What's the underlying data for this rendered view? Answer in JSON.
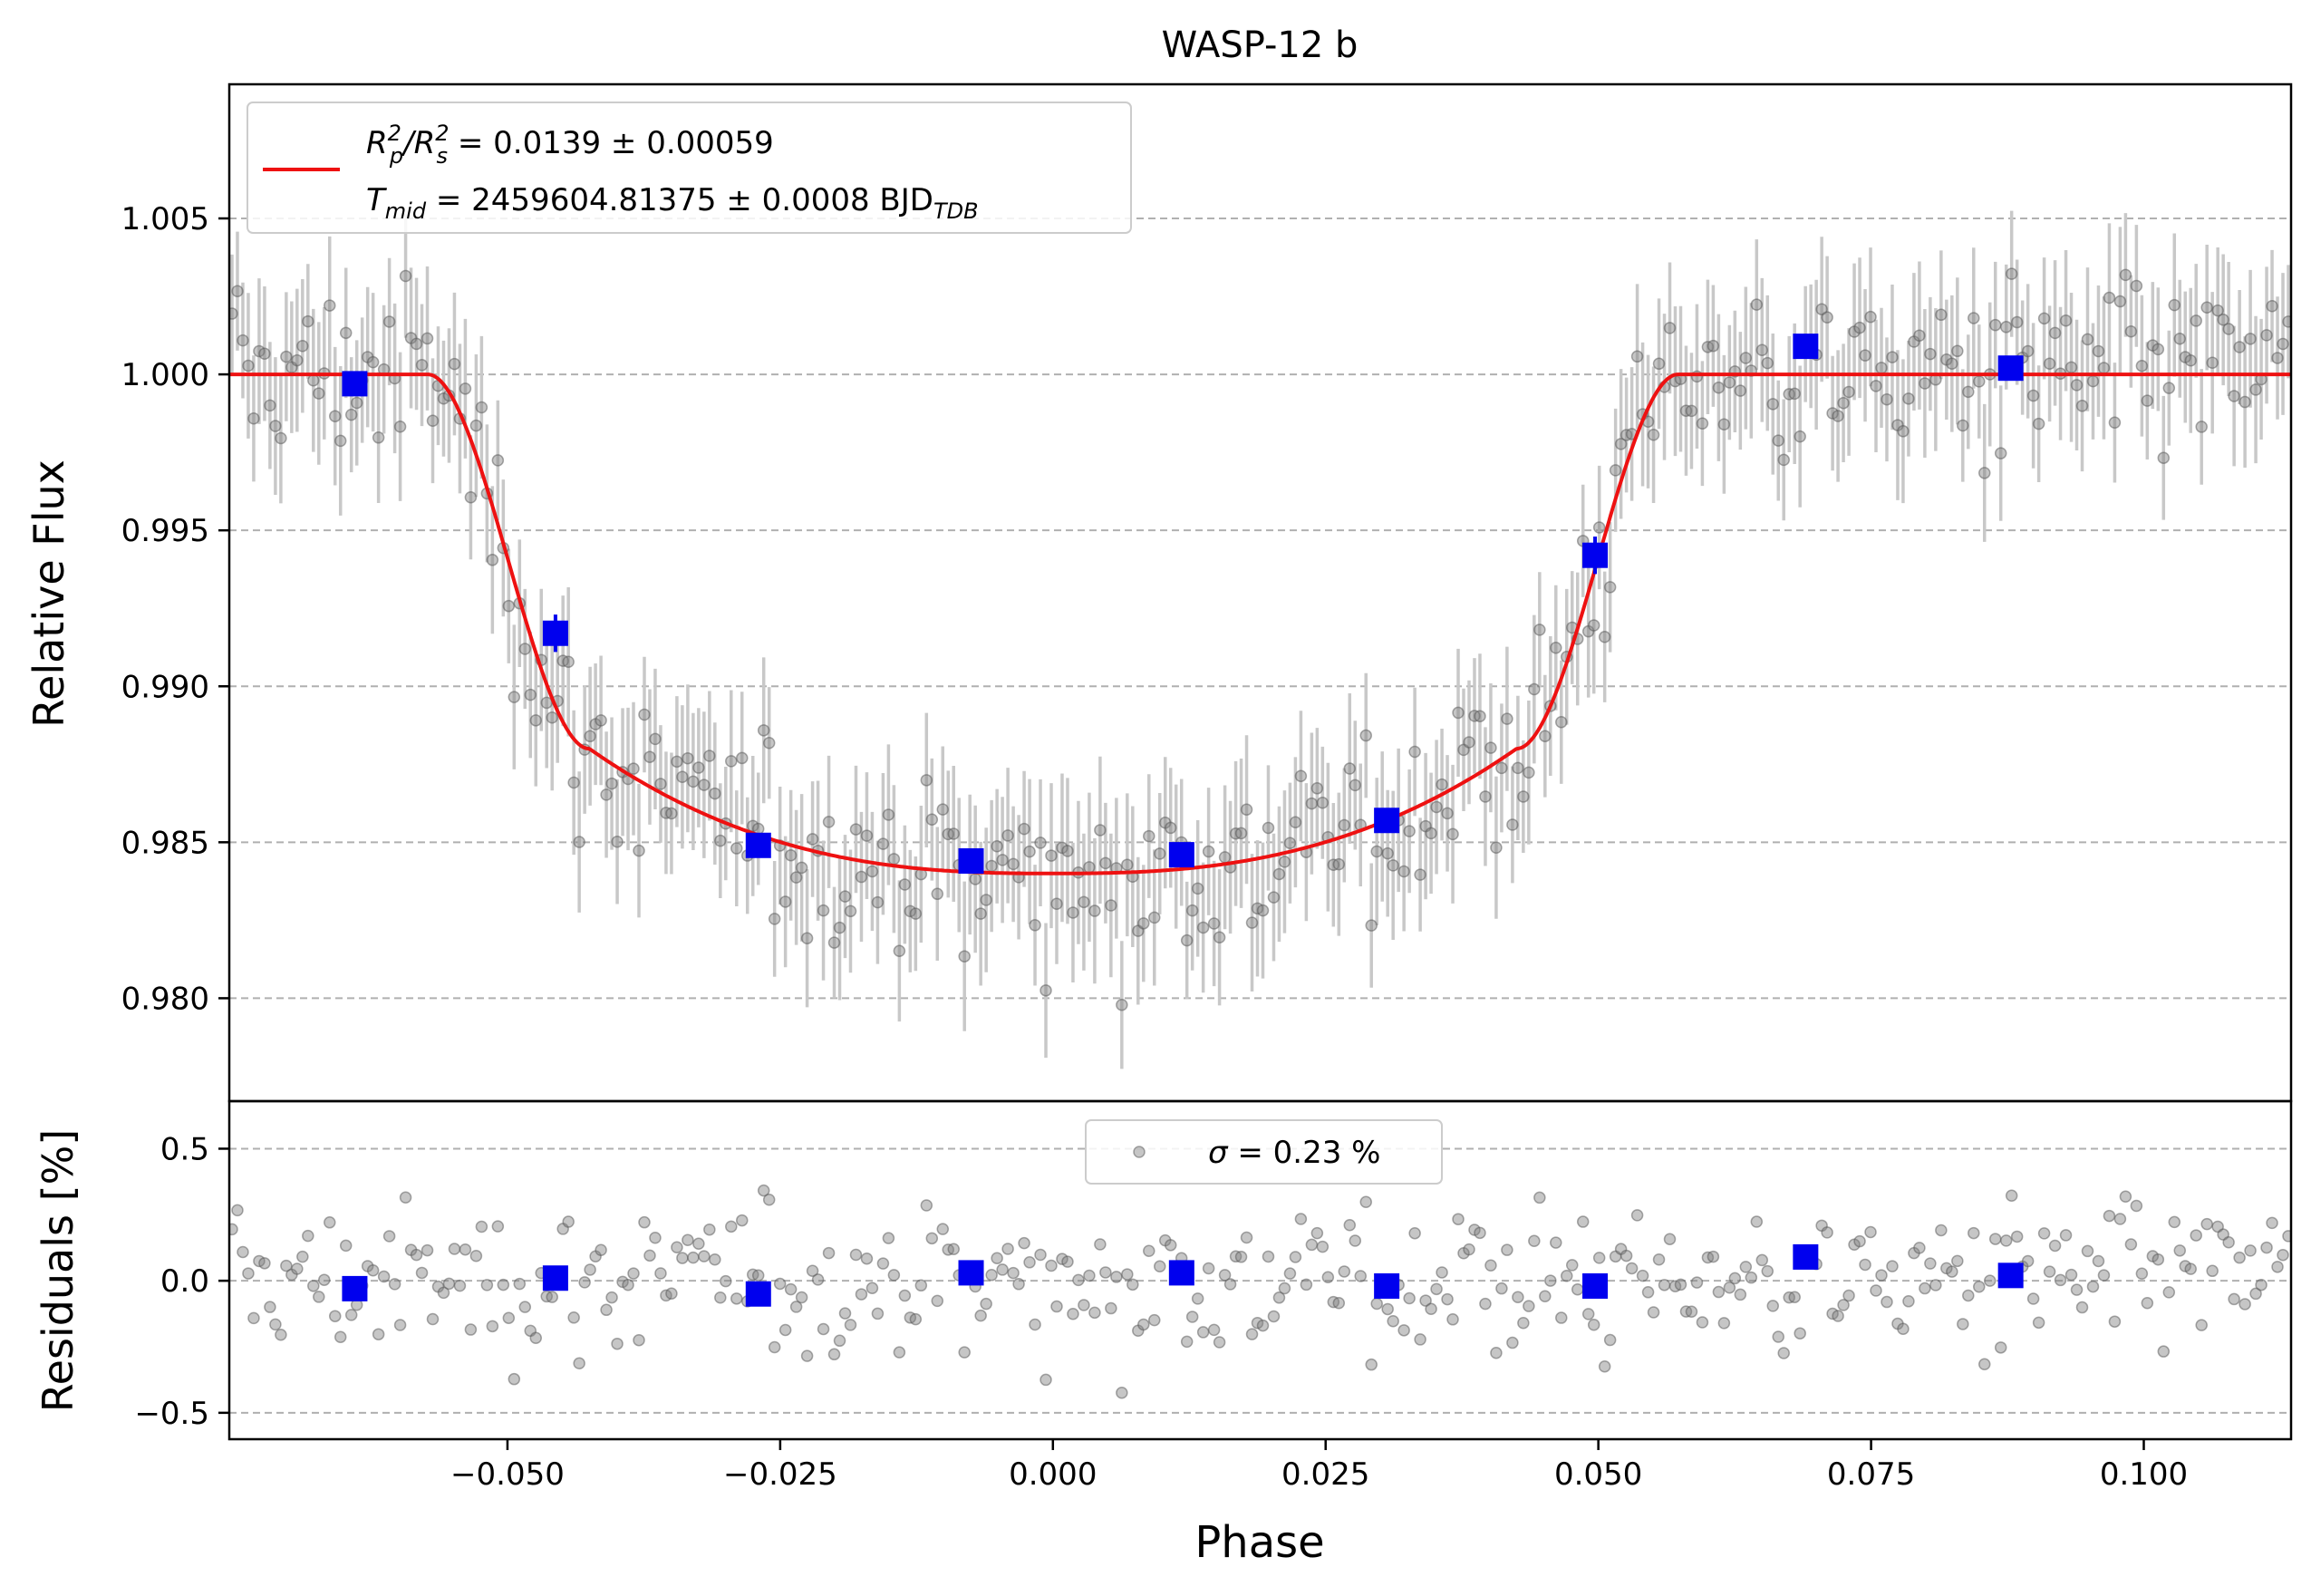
{
  "chart_data": [
    {
      "type": "scatter",
      "title": "WASP-12 b",
      "ylabel": "Relative Flux",
      "xlabel": "",
      "xlim": [
        -0.0755,
        0.1135
      ],
      "ylim": [
        0.9767,
        1.0093
      ],
      "grid": "horizontal dashed",
      "legend_position": "top-left",
      "y_ticks": [
        "1.005",
        "1.000",
        "0.995",
        "0.990",
        "0.985",
        "0.980"
      ],
      "y_tick_values": [
        1.005,
        1.0,
        0.995,
        0.99,
        0.985,
        0.98
      ],
      "legend": {
        "line1": {
          "lhs": "R",
          "lhs_sub": "p",
          "lhs_sup": "2",
          "slash": "/R",
          "rhs_sub": "s",
          "rhs_sup": "2",
          "rest": " = 0.0139 ± 0.00059"
        },
        "line2": {
          "lhs": "T",
          "lhs_sub": "mid",
          "rest": " = 2459604.81375 ± 0.0008 BJD",
          "rest_sub": "TDB"
        }
      },
      "model": {
        "color": "#ee1111",
        "baseline": 1.0,
        "depth": 0.016,
        "t1": 0.0573,
        "t2": 0.0425,
        "ingress_flux": 0.988
      },
      "binned": {
        "color": "#0000ee",
        "x": [
          -0.064,
          -0.0456,
          -0.027,
          -0.0075,
          0.0118,
          0.0306,
          0.0497,
          0.069,
          0.0878
        ],
        "y": [
          0.9997,
          0.9917,
          0.9849,
          0.9844,
          0.9846,
          0.9857,
          0.9942,
          1.0009,
          1.0002
        ],
        "yerr": [
          0.0002,
          0.0006,
          0.0002,
          0.0002,
          0.0002,
          0.0002,
          0.0006,
          0.0002,
          0.0002
        ]
      },
      "raw": {
        "color": "#808080",
        "count": 380,
        "typical_error": 0.0021,
        "scatter": 0.0023
      }
    },
    {
      "type": "scatter",
      "title": "",
      "ylabel": "Residuals [%]",
      "xlabel": "Phase",
      "xlim": [
        -0.0755,
        0.1135
      ],
      "ylim": [
        -0.6,
        0.68
      ],
      "grid": "horizontal dashed",
      "legend_position": "top-center",
      "y_ticks": [
        "0.5",
        "0.0",
        "−0.5"
      ],
      "y_tick_values": [
        0.5,
        0.0,
        -0.5
      ],
      "x_ticks": [
        "−0.050",
        "−0.025",
        "0.000",
        "0.025",
        "0.050",
        "0.075",
        "0.100"
      ],
      "x_tick_values": [
        -0.05,
        -0.025,
        0.0,
        0.025,
        0.05,
        0.075,
        0.1
      ],
      "legend": {
        "symbol": "σ",
        "rest": " = 0.23 %"
      },
      "binned": {
        "color": "#0000ee",
        "x": [
          -0.064,
          -0.0456,
          -0.027,
          -0.0075,
          0.0118,
          0.0306,
          0.0497,
          0.069,
          0.0878
        ],
        "y": [
          -0.03,
          0.01,
          -0.05,
          0.03,
          0.03,
          -0.02,
          -0.02,
          0.09,
          0.02
        ]
      }
    }
  ]
}
